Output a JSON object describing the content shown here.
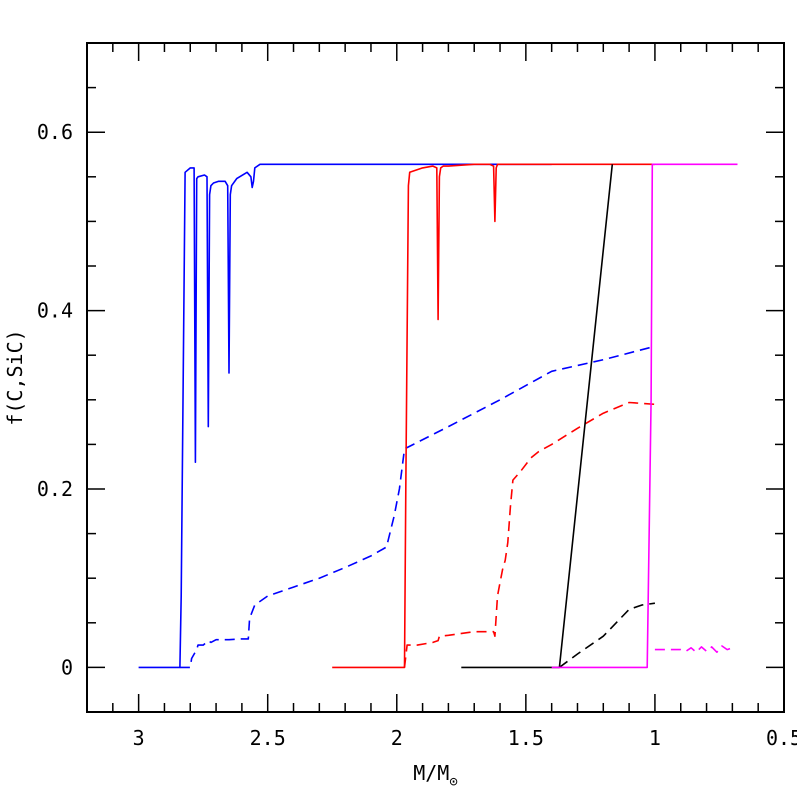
{
  "chart_data": {
    "type": "line",
    "title": "",
    "xlabel": "M/M",
    "xlabel_subscript": "⊙",
    "ylabel": "f(C,SiC)",
    "xlim": [
      3.2,
      0.5
    ],
    "ylim": [
      -0.05,
      0.7
    ],
    "x_ticks": [
      "3",
      "2.5",
      "2",
      "1.5",
      "1",
      "0.5"
    ],
    "y_ticks": [
      "0",
      "0.2",
      "0.4",
      "0.6"
    ],
    "grid": false,
    "legend": "none",
    "series": [
      {
        "color": "#0000ff",
        "dash": "solid",
        "x": [
          3.0,
          2.84,
          2.835,
          2.82,
          2.8,
          2.785,
          2.78,
          2.775,
          2.77,
          2.745,
          2.735,
          2.73,
          2.725,
          2.72,
          2.71,
          2.69,
          2.665,
          2.655,
          2.65,
          2.645,
          2.64,
          2.62,
          2.58,
          2.565,
          2.56,
          2.555,
          2.55,
          2.53,
          2.4,
          2.2,
          2.0,
          1.9,
          1.6,
          1.4
        ],
        "y": [
          0.0,
          0.0,
          0.08,
          0.555,
          0.56,
          0.56,
          0.23,
          0.548,
          0.55,
          0.552,
          0.55,
          0.27,
          0.53,
          0.54,
          0.543,
          0.545,
          0.545,
          0.54,
          0.33,
          0.53,
          0.54,
          0.548,
          0.555,
          0.55,
          0.538,
          0.545,
          0.56,
          0.564,
          0.564,
          0.564,
          0.564,
          0.564,
          0.564,
          0.564
        ]
      },
      {
        "color": "#0000ff",
        "dash": "dashed",
        "x": [
          2.84,
          2.8,
          2.795,
          2.775,
          2.77,
          2.75,
          2.73,
          2.72,
          2.7,
          2.65,
          2.6,
          2.575,
          2.57,
          2.55,
          2.5,
          2.4,
          2.3,
          2.2,
          2.1,
          2.04,
          2.01,
          1.99,
          1.97,
          1.8,
          1.6,
          1.4,
          1.2,
          1.0
        ],
        "y": [
          0.0,
          0.0,
          0.01,
          0.02,
          0.025,
          0.025,
          0.03,
          0.028,
          0.031,
          0.031,
          0.032,
          0.032,
          0.055,
          0.07,
          0.08,
          0.09,
          0.1,
          0.112,
          0.125,
          0.135,
          0.17,
          0.2,
          0.245,
          0.27,
          0.3,
          0.332,
          0.345,
          0.36
        ]
      },
      {
        "color": "#ff0000",
        "dash": "solid",
        "x": [
          2.25,
          1.97,
          1.965,
          1.955,
          1.95,
          1.9,
          1.86,
          1.845,
          1.84,
          1.835,
          1.83,
          1.82,
          1.8,
          1.7,
          1.64,
          1.625,
          1.62,
          1.615,
          1.61,
          1.5,
          1.3,
          1.1,
          1.0
        ],
        "y": [
          0.0,
          0.0,
          0.2,
          0.54,
          0.555,
          0.56,
          0.562,
          0.56,
          0.39,
          0.55,
          0.56,
          0.562,
          0.562,
          0.564,
          0.564,
          0.562,
          0.5,
          0.56,
          0.564,
          0.564,
          0.564,
          0.564,
          0.564
        ]
      },
      {
        "color": "#ff0000",
        "dash": "dashed",
        "x": [
          1.97,
          1.96,
          1.92,
          1.86,
          1.84,
          1.835,
          1.8,
          1.7,
          1.65,
          1.625,
          1.62,
          1.61,
          1.6,
          1.59,
          1.58,
          1.57,
          1.56,
          1.55,
          1.52,
          1.48,
          1.45,
          1.4,
          1.3,
          1.2,
          1.1,
          1.05,
          1.0
        ],
        "y": [
          0.0,
          0.025,
          0.025,
          0.028,
          0.03,
          0.035,
          0.036,
          0.04,
          0.04,
          0.04,
          0.035,
          0.08,
          0.095,
          0.11,
          0.12,
          0.14,
          0.18,
          0.21,
          0.22,
          0.235,
          0.242,
          0.25,
          0.268,
          0.285,
          0.297,
          0.296,
          0.295
        ]
      },
      {
        "color": "#000000",
        "dash": "solid",
        "x": [
          1.75,
          1.4,
          1.37,
          1.165
        ],
        "y": [
          0.0,
          0.0,
          0.0,
          0.564
        ]
      },
      {
        "color": "#000000",
        "dash": "dashed",
        "x": [
          1.37,
          1.3,
          1.2,
          1.15,
          1.1,
          1.05,
          1.0
        ],
        "y": [
          0.0,
          0.015,
          0.035,
          0.05,
          0.065,
          0.07,
          0.072
        ]
      },
      {
        "color": "#ff00ff",
        "dash": "solid",
        "x": [
          1.4,
          1.03,
          1.015,
          1.01,
          1.0,
          0.8,
          0.68
        ],
        "y": [
          0.0,
          0.0,
          0.3,
          0.564,
          0.564,
          0.564,
          0.564
        ]
      },
      {
        "color": "#ff00ff",
        "dash": "dashed",
        "x": [
          1.0,
          0.9,
          0.88,
          0.86,
          0.84,
          0.82,
          0.8,
          0.78,
          0.76,
          0.74,
          0.72,
          0.7
        ],
        "y": [
          0.02,
          0.02,
          0.018,
          0.022,
          0.017,
          0.023,
          0.018,
          0.023,
          0.017,
          0.024,
          0.02,
          0.022
        ]
      }
    ]
  }
}
